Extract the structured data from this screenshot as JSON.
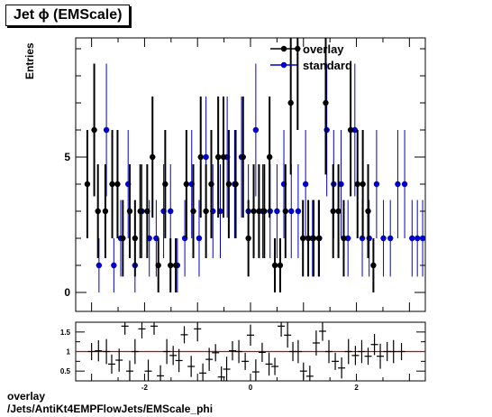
{
  "page": {
    "title": "Jet ϕ (EMScale)",
    "caption_line1": "overlay",
    "caption_line2": "/Jets/AntiKt4EMPFlowJets/EMScale_phi"
  },
  "colors": {
    "overlay": "#000000",
    "standard": "#0000cc",
    "ratio_line": "#cc0000"
  },
  "chart_data": [
    {
      "type": "scatter",
      "panel": "main",
      "ylabel": "Entries",
      "xlim": [
        -3.3,
        3.3
      ],
      "ylim": [
        -0.7,
        9.4
      ],
      "y_ticks": [
        0,
        5
      ],
      "legend_placement": "top-center",
      "grid": false,
      "x": [
        -3.08,
        -2.95,
        -2.81,
        -2.68,
        -2.55,
        -2.41,
        -2.28,
        -2.14,
        -2.01,
        -1.88,
        -1.74,
        -1.61,
        -1.47,
        -1.34,
        -1.21,
        -1.07,
        -0.94,
        -0.8,
        -0.67,
        -0.54,
        -0.4,
        -0.27,
        -0.13,
        0.0,
        0.13,
        0.27,
        0.4,
        0.54,
        0.67,
        0.8,
        0.94,
        1.07,
        1.21,
        1.34,
        1.47,
        1.61,
        1.74,
        1.88,
        2.01,
        2.14,
        2.28,
        2.41,
        2.55,
        2.68,
        2.81,
        2.95,
        3.08
      ],
      "series": [
        {
          "name": "overlay",
          "values": [
            4,
            6,
            3,
            3,
            4,
            4,
            2,
            3,
            2,
            3,
            3,
            5,
            1,
            4,
            1,
            1,
            4,
            3,
            5,
            3,
            4,
            5,
            5,
            4,
            4,
            5,
            2,
            3,
            3,
            3,
            5,
            1,
            1,
            3,
            7,
            9,
            2,
            2,
            2,
            2,
            7,
            3,
            3,
            2,
            6,
            4,
            4,
            3,
            1
          ],
          "x": [
            -3.08,
            -2.95,
            -2.88,
            -2.74,
            -2.61,
            -2.51,
            -2.41,
            -2.28,
            -2.18,
            -2.08,
            -1.95,
            -1.85,
            -1.74,
            -1.61,
            -1.51,
            -1.41,
            -1.21,
            -1.08,
            -0.94,
            -0.84,
            -0.74,
            -0.61,
            -0.51,
            -0.41,
            -0.28,
            -0.14,
            -0.04,
            0.06,
            0.16,
            0.26,
            0.36,
            0.46,
            0.56,
            0.66,
            0.76,
            0.89,
            0.99,
            1.09,
            1.19,
            1.29,
            1.42,
            1.56,
            1.66,
            1.76,
            1.89,
            2.02,
            2.12,
            2.22,
            2.32
          ]
        },
        {
          "name": "standard",
          "values": [
            1,
            6,
            1,
            2,
            4,
            1,
            3,
            2,
            2,
            3,
            3,
            1,
            2,
            4,
            2,
            5,
            3,
            3,
            5,
            4,
            5,
            3,
            6,
            3,
            3,
            3,
            4,
            3,
            3,
            4,
            2,
            2,
            6,
            4,
            4,
            2,
            6,
            2,
            2,
            4,
            2,
            2,
            4,
            4,
            2,
            2,
            2
          ],
          "x": [
            -2.86,
            -2.72,
            -2.58,
            -2.45,
            -2.31,
            -2.18,
            -2.05,
            -1.91,
            -1.78,
            -1.64,
            -1.51,
            -1.38,
            -1.24,
            -1.11,
            -0.97,
            -0.84,
            -0.71,
            -0.57,
            -0.44,
            -0.3,
            -0.17,
            -0.04,
            0.1,
            0.23,
            0.37,
            0.5,
            0.63,
            0.77,
            0.9,
            1.04,
            1.17,
            1.3,
            1.44,
            1.57,
            1.71,
            1.84,
            1.97,
            2.11,
            2.24,
            2.38,
            2.51,
            2.64,
            2.78,
            2.91,
            3.05,
            3.15,
            3.25
          ]
        }
      ]
    },
    {
      "type": "scatter",
      "panel": "ratio",
      "xlim": [
        -3.3,
        3.3
      ],
      "ylim": [
        0.25,
        1.75
      ],
      "y_ticks": [
        0.5,
        1,
        1.5
      ],
      "x_ticks": [
        -2,
        0,
        2
      ],
      "reference_line": 1,
      "x": [
        -3.0,
        -2.87,
        -2.72,
        -2.62,
        -2.48,
        -2.37,
        -2.28,
        -2.18,
        -2.05,
        -1.93,
        -1.82,
        -1.7,
        -1.58,
        -1.46,
        -1.35,
        -1.25,
        -1.12,
        -1.0,
        -0.9,
        -0.78,
        -0.66,
        -0.55,
        -0.45,
        -0.34,
        -0.22,
        -0.1,
        0.0,
        0.1,
        0.22,
        0.35,
        0.46,
        0.58,
        0.7,
        0.8,
        0.9,
        1.0,
        1.12,
        1.24,
        1.36,
        1.48,
        1.6,
        1.72,
        1.85,
        1.98,
        2.1,
        2.22,
        2.34,
        2.45,
        2.58,
        2.7,
        2.85
      ],
      "values": [
        1.0,
        1.02,
        1.0,
        0.68,
        0.78,
        1.65,
        0.5,
        1.0,
        1.58,
        0.5,
        1.65,
        0.38,
        1.0,
        0.9,
        0.77,
        1.43,
        0.62,
        1.58,
        0.45,
        0.8,
        0.97,
        0.35,
        0.55,
        1.02,
        1.0,
        0.75,
        1.42,
        0.48,
        0.98,
        0.68,
        0.62,
        1.65,
        1.42,
        1.0,
        1.0,
        0.5,
        0.37,
        1.22,
        1.52,
        1.0,
        0.75,
        0.58,
        1.0,
        0.9,
        1.0,
        0.88,
        1.18,
        0.88,
        1.0,
        1.0,
        1.0
      ]
    }
  ],
  "axis_labels": {
    "main_y_ticks": [
      "0",
      "5"
    ],
    "ratio_y_ticks": [
      "0.5",
      "1",
      "1.5"
    ],
    "ratio_x_ticks": [
      "-2",
      "0",
      "2"
    ]
  },
  "legend": {
    "items": [
      {
        "label": "overlay",
        "color": "#000000"
      },
      {
        "label": "standard",
        "color": "#0000cc"
      }
    ]
  }
}
